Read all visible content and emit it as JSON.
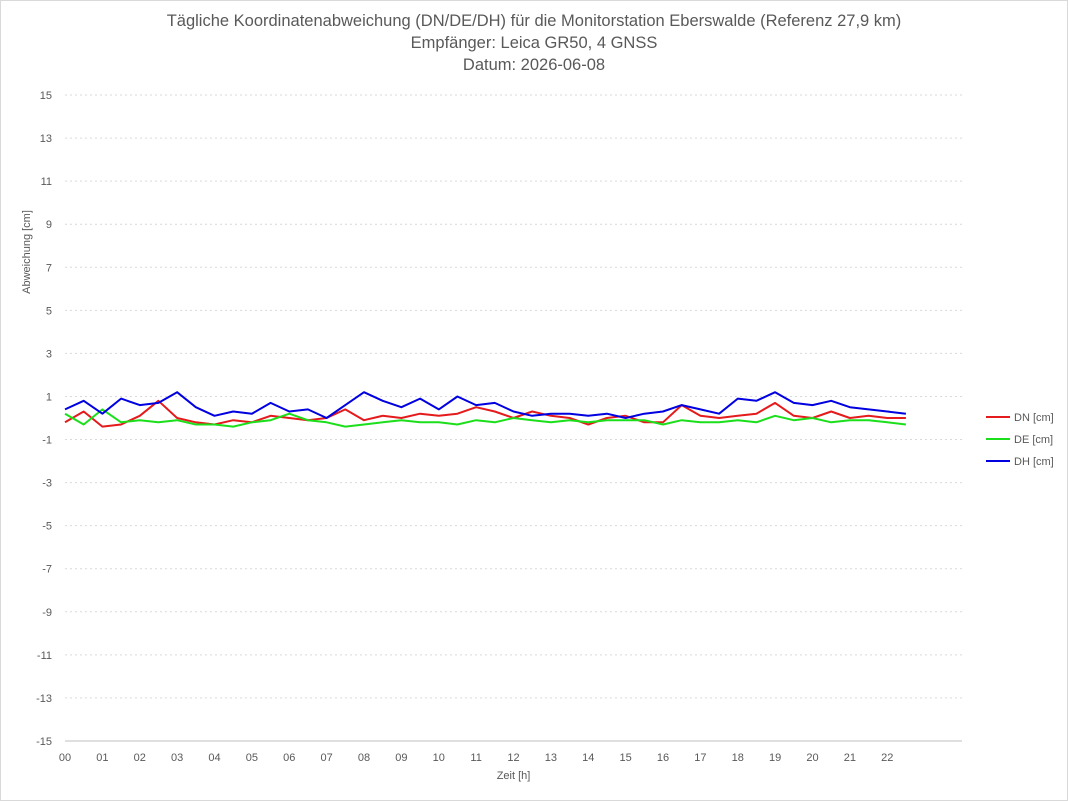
{
  "chart_data": {
    "type": "line",
    "title": "Tägliche Koordinatenabweichung (DN/DE/DH) für die Monitorstation Eberswalde (Referenz 27,9 km)",
    "subtitle": "Empfänger: Leica GR50, 4 GNSS",
    "date_line": "Datum: 2026-06-08",
    "xlabel": "Zeit [h]",
    "ylabel": "Abweichung [cm]",
    "xlim": [
      0,
      24
    ],
    "ylim": [
      -15,
      15
    ],
    "x_ticks": [
      0,
      1,
      2,
      3,
      4,
      5,
      6,
      7,
      8,
      9,
      10,
      11,
      12,
      13,
      14,
      15,
      16,
      17,
      18,
      19,
      20,
      21,
      22
    ],
    "x_tick_labels": [
      "00",
      "01",
      "02",
      "03",
      "04",
      "05",
      "06",
      "07",
      "08",
      "09",
      "10",
      "11",
      "12",
      "13",
      "14",
      "15",
      "16",
      "17",
      "18",
      "19",
      "20",
      "21",
      "22"
    ],
    "y_ticks": [
      15,
      13,
      11,
      9,
      7,
      5,
      3,
      1,
      -1,
      -3,
      -5,
      -7,
      -9,
      -11,
      -13,
      -15
    ],
    "y_tick_labels": [
      "15",
      "13",
      "11",
      "9",
      "7",
      "5",
      "3",
      "1",
      "-1",
      "-3",
      "-5",
      "-7",
      "-9",
      "-11",
      "-13",
      "-15"
    ],
    "grid": "horizontal dotted",
    "legend_position": "right",
    "series": [
      {
        "name": "DN [cm]",
        "color": "#e41a1c",
        "x": [
          0,
          0.5,
          1,
          1.5,
          2,
          2.5,
          3,
          3.5,
          4,
          4.5,
          5,
          5.5,
          6,
          6.5,
          7,
          7.5,
          8,
          8.5,
          9,
          9.5,
          10,
          10.5,
          11,
          11.5,
          12,
          12.5,
          13,
          13.5,
          14,
          14.5,
          15,
          15.5,
          16,
          16.5,
          17,
          17.5,
          18,
          18.5,
          19,
          19.5,
          20,
          20.5,
          21,
          21.5,
          22,
          22.5
        ],
        "values": [
          -0.2,
          0.3,
          -0.4,
          -0.3,
          0.1,
          0.8,
          0.0,
          -0.2,
          -0.3,
          -0.1,
          -0.2,
          0.1,
          0.0,
          -0.1,
          0.0,
          0.4,
          -0.1,
          0.1,
          0.0,
          0.2,
          0.1,
          0.2,
          0.5,
          0.3,
          0.0,
          0.3,
          0.1,
          0.0,
          -0.3,
          0.0,
          0.1,
          -0.2,
          -0.2,
          0.6,
          0.1,
          0.0,
          0.1,
          0.2,
          0.7,
          0.1,
          0.0,
          0.3,
          0.0,
          0.1,
          0.0,
          0.0
        ]
      },
      {
        "name": "DE [cm]",
        "color": "#1adf1a",
        "x": [
          0,
          0.5,
          1,
          1.5,
          2,
          2.5,
          3,
          3.5,
          4,
          4.5,
          5,
          5.5,
          6,
          6.5,
          7,
          7.5,
          8,
          8.5,
          9,
          9.5,
          10,
          10.5,
          11,
          11.5,
          12,
          12.5,
          13,
          13.5,
          14,
          14.5,
          15,
          15.5,
          16,
          16.5,
          17,
          17.5,
          18,
          18.5,
          19,
          19.5,
          20,
          20.5,
          21,
          21.5,
          22,
          22.5
        ],
        "values": [
          0.2,
          -0.3,
          0.4,
          -0.2,
          -0.1,
          -0.2,
          -0.1,
          -0.3,
          -0.3,
          -0.4,
          -0.2,
          -0.1,
          0.2,
          -0.1,
          -0.2,
          -0.4,
          -0.3,
          -0.2,
          -0.1,
          -0.2,
          -0.2,
          -0.3,
          -0.1,
          -0.2,
          0.0,
          -0.1,
          -0.2,
          -0.1,
          -0.2,
          -0.1,
          -0.1,
          -0.1,
          -0.3,
          -0.1,
          -0.2,
          -0.2,
          -0.1,
          -0.2,
          0.1,
          -0.1,
          0.0,
          -0.2,
          -0.1,
          -0.1,
          -0.2,
          -0.3
        ]
      },
      {
        "name": "DH [cm]",
        "color": "#0000e0",
        "x": [
          0,
          0.5,
          1,
          1.5,
          2,
          2.5,
          3,
          3.5,
          4,
          4.5,
          5,
          5.5,
          6,
          6.5,
          7,
          7.5,
          8,
          8.5,
          9,
          9.5,
          10,
          10.5,
          11,
          11.5,
          12,
          12.5,
          13,
          13.5,
          14,
          14.5,
          15,
          15.5,
          16,
          16.5,
          17,
          17.5,
          18,
          18.5,
          19,
          19.5,
          20,
          20.5,
          21,
          21.5,
          22,
          22.5
        ],
        "values": [
          0.4,
          0.8,
          0.2,
          0.9,
          0.6,
          0.7,
          1.2,
          0.5,
          0.1,
          0.3,
          0.2,
          0.7,
          0.3,
          0.4,
          0.0,
          0.6,
          1.2,
          0.8,
          0.5,
          0.9,
          0.4,
          1.0,
          0.6,
          0.7,
          0.3,
          0.1,
          0.2,
          0.2,
          0.1,
          0.2,
          0.0,
          0.2,
          0.3,
          0.6,
          0.4,
          0.2,
          0.9,
          0.8,
          1.2,
          0.7,
          0.6,
          0.8,
          0.5,
          0.4,
          0.3,
          0.2
        ]
      }
    ]
  }
}
